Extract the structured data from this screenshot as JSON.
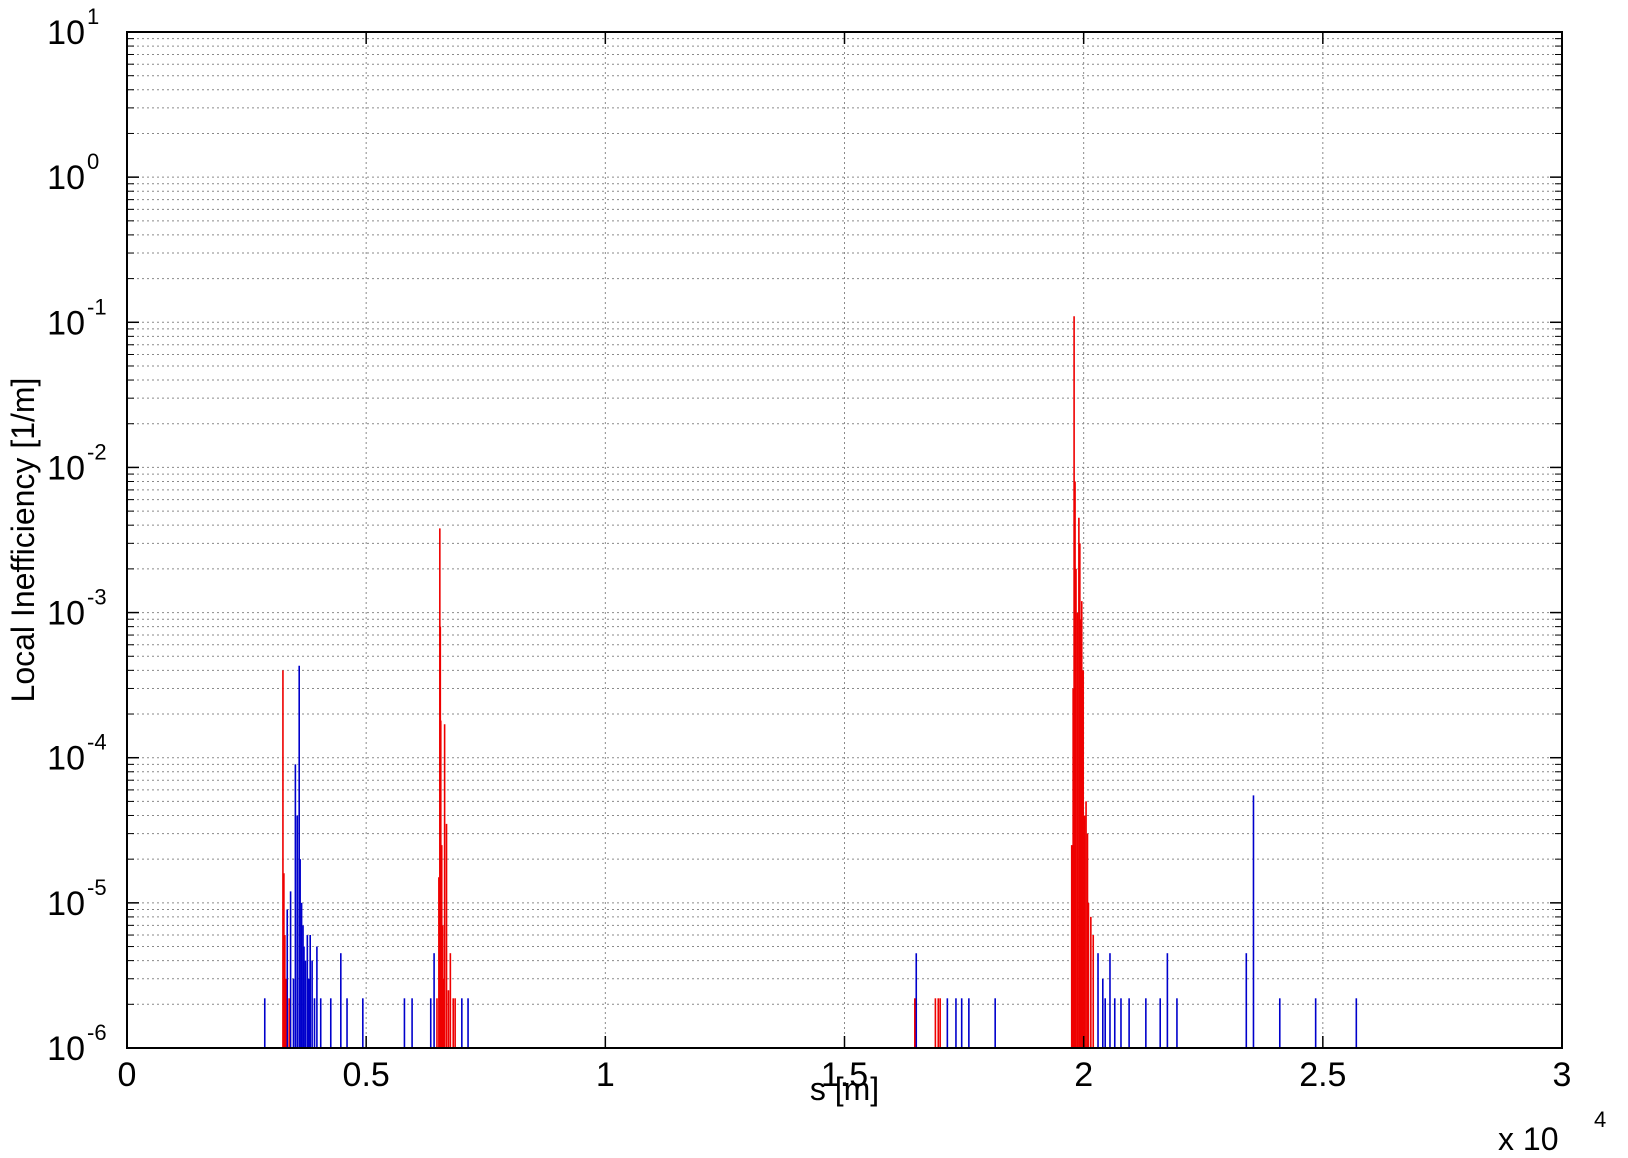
{
  "chart_data": {
    "type": "bar",
    "title": "",
    "xlabel": "s [m]",
    "ylabel": "Local Inefficiency [1/m]",
    "x_multiplier_label": "x 10",
    "x_multiplier_exponent": "4",
    "x_scale": "linear",
    "y_scale": "log",
    "xlim": [
      0,
      30000
    ],
    "ylim": [
      1e-06,
      10
    ],
    "grid": true,
    "x_ticks": [
      "0",
      "0.5",
      "1",
      "1.5",
      "2",
      "2.5",
      "3"
    ],
    "y_ticks": [
      {
        "base": "10",
        "exp": "-6"
      },
      {
        "base": "10",
        "exp": "-5"
      },
      {
        "base": "10",
        "exp": "-4"
      },
      {
        "base": "10",
        "exp": "-3"
      },
      {
        "base": "10",
        "exp": "-2"
      },
      {
        "base": "10",
        "exp": "-1"
      },
      {
        "base": "10",
        "exp": "0"
      },
      {
        "base": "10",
        "exp": "1"
      }
    ],
    "series": [
      {
        "color": "#0000cc",
        "points": [
          [
            2880,
            2.2e-06
          ],
          [
            3350,
            9e-06
          ],
          [
            3420,
            1.2e-05
          ],
          [
            3480,
            3e-06
          ],
          [
            3520,
            9e-05
          ],
          [
            3560,
            4e-05
          ],
          [
            3600,
            0.00043
          ],
          [
            3620,
            2e-05
          ],
          [
            3650,
            1e-05
          ],
          [
            3680,
            7e-06
          ],
          [
            3700,
            5e-06
          ],
          [
            3730,
            4e-06
          ],
          [
            3770,
            6e-06
          ],
          [
            3800,
            3e-06
          ],
          [
            3830,
            6e-06
          ],
          [
            3870,
            4e-06
          ],
          [
            3920,
            2.2e-06
          ],
          [
            3970,
            5e-06
          ],
          [
            4050,
            2.2e-06
          ],
          [
            4260,
            2.2e-06
          ],
          [
            4470,
            4.5e-06
          ],
          [
            4600,
            2.2e-06
          ],
          [
            4930,
            2.2e-06
          ],
          [
            5800,
            2.2e-06
          ],
          [
            5960,
            2.2e-06
          ],
          [
            6350,
            2.2e-06
          ],
          [
            6420,
            4.5e-06
          ],
          [
            7000,
            2.2e-06
          ],
          [
            7130,
            2.2e-06
          ],
          [
            16500,
            4.5e-06
          ],
          [
            17150,
            2.2e-06
          ],
          [
            17330,
            2.2e-06
          ],
          [
            17450,
            2.2e-06
          ],
          [
            17600,
            2.2e-06
          ],
          [
            18150,
            2.2e-06
          ],
          [
            20300,
            4.5e-06
          ],
          [
            20400,
            3e-06
          ],
          [
            20450,
            2.2e-06
          ],
          [
            20550,
            4.5e-06
          ],
          [
            20650,
            2.2e-06
          ],
          [
            20780,
            2.2e-06
          ],
          [
            20950,
            2.2e-06
          ],
          [
            21300,
            2.2e-06
          ],
          [
            21600,
            2.2e-06
          ],
          [
            21750,
            4.5e-06
          ],
          [
            21950,
            2.2e-06
          ],
          [
            23400,
            4.5e-06
          ],
          [
            23550,
            5.5e-05
          ],
          [
            24100,
            2.2e-06
          ],
          [
            24850,
            2.2e-06
          ],
          [
            25700,
            2.2e-06
          ]
        ]
      },
      {
        "color": "#ee0000",
        "points": [
          [
            3260,
            0.0004
          ],
          [
            3280,
            1.6e-05
          ],
          [
            3300,
            6e-06
          ],
          [
            3320,
            3e-06
          ],
          [
            3390,
            2.2e-06
          ],
          [
            6480,
            2.2e-06
          ],
          [
            6520,
            1.5e-05
          ],
          [
            6540,
            0.0038
          ],
          [
            6550,
            0.0008
          ],
          [
            6560,
            0.00018
          ],
          [
            6580,
            2.5e-05
          ],
          [
            6600,
            7e-06
          ],
          [
            6620,
            3e-06
          ],
          [
            6640,
            0.00017
          ],
          [
            6680,
            3.5e-05
          ],
          [
            6720,
            2.5e-06
          ],
          [
            6760,
            4.5e-06
          ],
          [
            6820,
            2.2e-06
          ],
          [
            6860,
            2.2e-06
          ],
          [
            16470,
            2.2e-06
          ],
          [
            16900,
            2.2e-06
          ],
          [
            16960,
            2.2e-06
          ],
          [
            17000,
            2.2e-06
          ],
          [
            19750,
            2.5e-05
          ],
          [
            19780,
            0.0003
          ],
          [
            19800,
            0.11
          ],
          [
            19820,
            0.008
          ],
          [
            19840,
            0.002
          ],
          [
            19870,
            0.001
          ],
          [
            19900,
            0.0045
          ],
          [
            19920,
            0.003
          ],
          [
            19940,
            0.0009
          ],
          [
            19960,
            0.0012
          ],
          [
            19990,
            0.0004
          ],
          [
            20020,
            4e-05
          ],
          [
            20050,
            5e-05
          ],
          [
            20080,
            3e-05
          ],
          [
            20100,
            1e-05
          ],
          [
            20150,
            8e-06
          ],
          [
            20200,
            6e-06
          ]
        ]
      }
    ]
  }
}
